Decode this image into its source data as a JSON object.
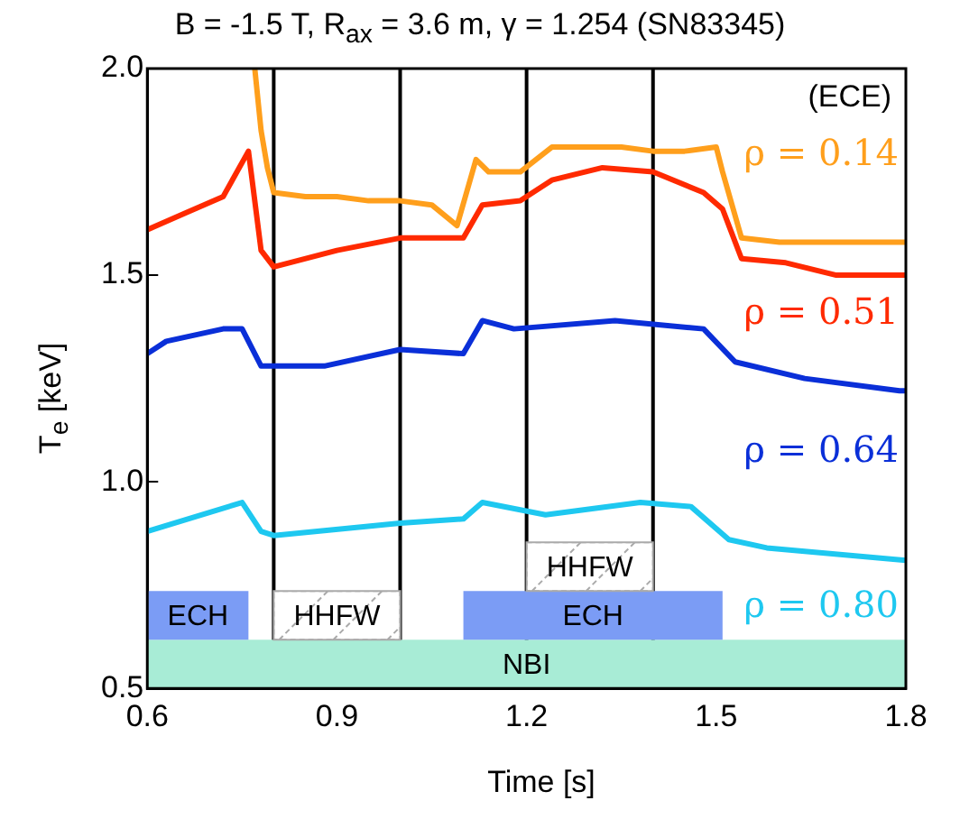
{
  "chart_data": {
    "type": "line",
    "title": "B = -1.5 T, R$_{ax}$ = 3.6 m, γ = 1.254 (SN83345)",
    "xlabel": "Time [s]",
    "ylabel": "T$_{e}$ [keV]",
    "annotations": [
      "(ECE)"
    ],
    "xlim": [
      0.6,
      1.8
    ],
    "xticks": [
      {
        "value": 0.6,
        "label": "0.6"
      },
      {
        "value": 0.9,
        "label": "0.9"
      },
      {
        "value": 1.2,
        "label": "1.2"
      },
      {
        "value": 1.5,
        "label": "1.5"
      },
      {
        "value": 1.8,
        "label": "1.8"
      }
    ],
    "ylim": [
      0.5,
      2.0
    ],
    "yticks": [
      0.5,
      {
        "value": 1,
        "label": "1.0"
      },
      1.5,
      {
        "value": 2,
        "label": "2.0"
      }
    ],
    "grid": false,
    "legend": false,
    "marker": "none",
    "line_style": "solid",
    "series": [
      {
        "name": "ρ = 0.14",
        "color": "#ff9f1c",
        "x": [
          0.77,
          0.78,
          0.79,
          0.8,
          0.85,
          0.9,
          0.95,
          1.0,
          1.05,
          1.09,
          1.12,
          1.14,
          1.19,
          1.24,
          1.3,
          1.35,
          1.4,
          1.45,
          1.5,
          1.51,
          1.54,
          1.6,
          1.7,
          1.8
        ],
        "values": [
          2.0,
          1.85,
          1.76,
          1.7,
          1.69,
          1.69,
          1.68,
          1.68,
          1.67,
          1.62,
          1.78,
          1.75,
          1.75,
          1.81,
          1.81,
          1.81,
          1.8,
          1.8,
          1.81,
          1.75,
          1.59,
          1.58,
          1.58,
          1.58
        ]
      },
      {
        "name": "ρ = 0.51",
        "color": "#ff2a00",
        "x": [
          0.6,
          0.66,
          0.72,
          0.76,
          0.78,
          0.8,
          0.9,
          1.0,
          1.1,
          1.13,
          1.19,
          1.24,
          1.32,
          1.4,
          1.48,
          1.51,
          1.54,
          1.61,
          1.69,
          1.79,
          1.8
        ],
        "values": [
          1.61,
          1.65,
          1.69,
          1.8,
          1.56,
          1.52,
          1.56,
          1.59,
          1.59,
          1.67,
          1.68,
          1.73,
          1.76,
          1.75,
          1.7,
          1.66,
          1.54,
          1.53,
          1.5,
          1.5,
          1.5
        ]
      },
      {
        "name": "ρ = 0.64",
        "color": "#0a2fd8",
        "x": [
          0.6,
          0.63,
          0.72,
          0.75,
          0.78,
          0.88,
          1.0,
          1.1,
          1.13,
          1.18,
          1.34,
          1.48,
          1.53,
          1.64,
          1.79,
          1.8
        ],
        "values": [
          1.31,
          1.34,
          1.37,
          1.37,
          1.28,
          1.28,
          1.32,
          1.31,
          1.39,
          1.37,
          1.39,
          1.37,
          1.29,
          1.25,
          1.22,
          1.22
        ]
      },
      {
        "name": "ρ = 0.80",
        "color": "#1ec8f0",
        "x": [
          0.6,
          0.75,
          0.78,
          0.8,
          1.0,
          1.1,
          1.13,
          1.23,
          1.38,
          1.46,
          1.52,
          1.58,
          1.8
        ],
        "values": [
          0.88,
          0.95,
          0.88,
          0.87,
          0.9,
          0.91,
          0.95,
          0.92,
          0.95,
          0.94,
          0.86,
          0.84,
          0.81
        ]
      }
    ],
    "ref_lines": [
      {
        "axis": "x",
        "value": 0.8,
        "color": "#000000"
      },
      {
        "axis": "x",
        "value": 1.0,
        "color": "#000000"
      },
      {
        "axis": "x",
        "value": 1.2,
        "color": "#000000"
      },
      {
        "axis": "x",
        "value": 1.4,
        "color": "#000000"
      }
    ],
    "bands": [
      {
        "axis": "x",
        "from": 0.6,
        "to": 1.8,
        "label": "NBI",
        "color": "#a8ecd6"
      },
      {
        "axis": "x",
        "from": 0.6,
        "to": 0.76,
        "label": "ECH",
        "color": "#7b9cf5"
      },
      {
        "axis": "x",
        "from": 0.8,
        "to": 1.0,
        "label": "HHFW",
        "color": "#ffffff"
      },
      {
        "axis": "x",
        "from": 1.1,
        "to": 1.51,
        "label": "ECH",
        "color": "#7b9cf5"
      },
      {
        "axis": "x",
        "from": 1.2,
        "to": 1.4,
        "label": "HHFW",
        "color": "#ffffff"
      }
    ]
  }
}
